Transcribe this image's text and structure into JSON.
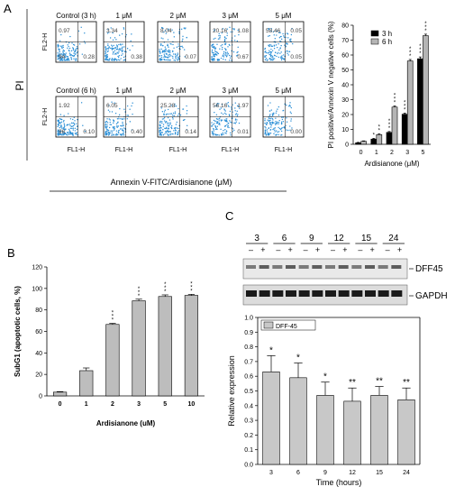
{
  "panel_labels": {
    "a": "A",
    "b": "B",
    "c": "C"
  },
  "panel_a": {
    "pi_label": "PI",
    "fl2_label": "FL2-H",
    "fl1_label": "FL1-H",
    "xaxis_caption": "Annexin V-FITC/Ardisianone (μM)",
    "tick_labels": [
      "10⁰",
      "10¹",
      "10²",
      "10³",
      "10⁴"
    ],
    "rows": [
      {
        "plots": [
          {
            "title": "Control (3 h)",
            "q": [
              "0.97",
              "",
              "94",
              "0.28"
            ]
          },
          {
            "title": "1 μM",
            "q": [
              "3.34",
              "",
              "",
              "0.38"
            ]
          },
          {
            "title": "2 μM",
            "q": [
              "8.04",
              "",
              "",
              "0.07"
            ]
          },
          {
            "title": "3 μM",
            "q": [
              "20.16",
              "1.08",
              "",
              "0.67"
            ]
          },
          {
            "title": "5 μM",
            "q": [
              "58.46",
              "0.05",
              "",
              "0.05"
            ]
          }
        ]
      },
      {
        "plots": [
          {
            "title": "Control (6 h)",
            "q": [
              "1.92",
              "",
              "96",
              "0.10"
            ]
          },
          {
            "title": "1 μM",
            "q": [
              "6.05",
              "",
              "",
              "0.40"
            ]
          },
          {
            "title": "2 μM",
            "q": [
              "25.28",
              "",
              "",
              "0.14"
            ]
          },
          {
            "title": "3 μM",
            "q": [
              "56.16",
              "1.97",
              "",
              "0.01"
            ]
          },
          {
            "title": "5 μM",
            "q": [
              "",
              "",
              "",
              "0.00"
            ]
          }
        ]
      }
    ]
  },
  "chart_data": [
    {
      "type": "bar",
      "panel": "A",
      "ylabel": "PI positive/Annexin V negative cells (%)",
      "xlabel": "Ardisianone (μM)",
      "categories": [
        "0",
        "1",
        "2",
        "3",
        "5"
      ],
      "yticks": [
        0,
        10,
        20,
        30,
        40,
        50,
        60,
        70,
        80
      ],
      "ylim": [
        0,
        80
      ],
      "legend_position": "top-right",
      "series": [
        {
          "name": "3 h",
          "color": "#000000",
          "values": [
            1.0,
            3.5,
            8.0,
            20.2,
            57.5
          ],
          "err": [
            0.3,
            0.5,
            0.6,
            0.8,
            1.2
          ],
          "stars": [
            "",
            "*",
            "***",
            "***",
            "***"
          ]
        },
        {
          "name": "6 h",
          "color": "#b5b5b5",
          "values": [
            2.0,
            6.5,
            25.0,
            56.0,
            73.0
          ],
          "err": [
            0.3,
            0.6,
            0.8,
            1.0,
            1.0
          ],
          "stars": [
            "",
            "**",
            "***",
            "***",
            "***"
          ]
        }
      ]
    },
    {
      "type": "bar",
      "panel": "B",
      "ylabel": "SubG1 (apoptotic cells, %)",
      "xlabel": "Ardisianone (uM)",
      "categories": [
        "0",
        "1",
        "2",
        "3",
        "5",
        "10"
      ],
      "values": [
        3.5,
        23.5,
        66.5,
        88.5,
        92.5,
        93.5
      ],
      "err": [
        0.5,
        2.5,
        1.0,
        1.5,
        1.5,
        1.0
      ],
      "stars": [
        "",
        "",
        "***",
        "***",
        "***",
        "***"
      ],
      "yticks": [
        0,
        20,
        40,
        60,
        80,
        100,
        120
      ],
      "ylim": [
        0,
        120
      ],
      "color": "#bdbdbd"
    },
    {
      "type": "bar",
      "panel": "C",
      "ylabel": "Relative expression",
      "xlabel": "Time (hours)",
      "categories": [
        "3",
        "6",
        "9",
        "12",
        "15",
        "24"
      ],
      "series": [
        {
          "name": "DFF-45",
          "color": "#c8c8c8",
          "values": [
            0.63,
            0.59,
            0.47,
            0.43,
            0.47,
            0.44
          ],
          "err": [
            0.11,
            0.1,
            0.09,
            0.09,
            0.06,
            0.08
          ],
          "stars": [
            "*",
            "*",
            "*",
            "**",
            "**",
            "**"
          ]
        }
      ],
      "yticks": [
        "0.0",
        "0.1",
        "0.2",
        "0.3",
        "0.4",
        "0.5",
        "0.6",
        "0.7",
        "0.8",
        "0.9",
        "1.0"
      ],
      "ylim": [
        0,
        1.0
      ],
      "legend_position": "top-left"
    }
  ],
  "panel_c_blot": {
    "timepoints": [
      "3",
      "6",
      "9",
      "12",
      "15",
      "24"
    ],
    "signs": [
      "–",
      "+"
    ],
    "bands": [
      "DFF45",
      "GAPDH"
    ]
  }
}
